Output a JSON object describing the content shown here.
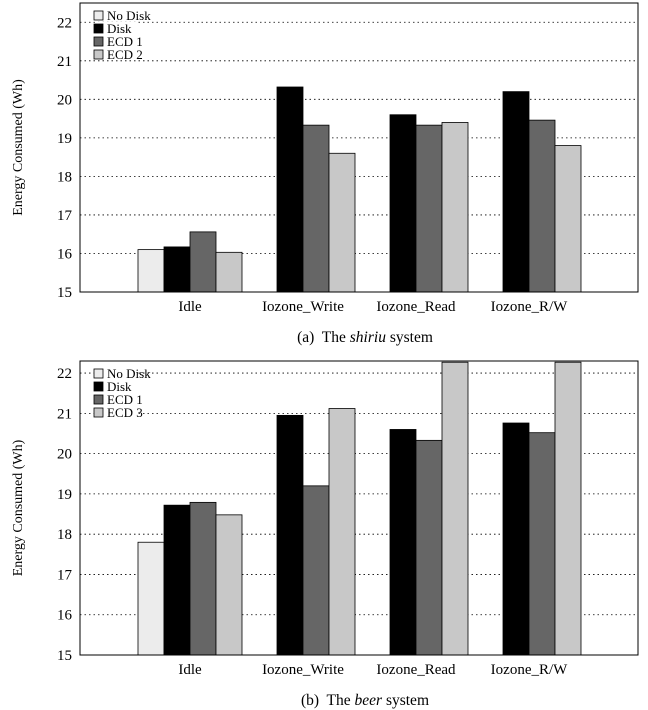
{
  "chart_data": [
    {
      "type": "bar",
      "ylabel": "Energy Consumed (Wh)",
      "ylim": [
        15,
        22.5
      ],
      "yticks": [
        15,
        16,
        17,
        18,
        19,
        20,
        21,
        22
      ],
      "grid": true,
      "legend_position": "top-left",
      "categories": [
        "Idle",
        "Iozone_Write",
        "Iozone_Read",
        "Iozone_R/W"
      ],
      "caption": {
        "prefix": "(a)  The ",
        "emph": "shiriu",
        "suffix": " system"
      },
      "series": [
        {
          "name": "No Disk",
          "color": "#ececec",
          "values": [
            16.1,
            null,
            null,
            null
          ]
        },
        {
          "name": "Disk",
          "color": "#000000",
          "values": [
            16.17,
            20.32,
            19.6,
            20.2
          ]
        },
        {
          "name": "ECD 1",
          "color": "#666666",
          "values": [
            16.56,
            19.33,
            19.33,
            19.46
          ]
        },
        {
          "name": "ECD 2",
          "color": "#c8c8c8",
          "values": [
            16.03,
            18.6,
            19.4,
            18.8
          ]
        }
      ]
    },
    {
      "type": "bar",
      "ylabel": "Energy Consumed (Wh)",
      "ylim": [
        15,
        22.3
      ],
      "yticks": [
        15,
        16,
        17,
        18,
        19,
        20,
        21,
        22
      ],
      "grid": true,
      "legend_position": "top-left",
      "categories": [
        "Idle",
        "Iozone_Write",
        "Iozone_Read",
        "Iozone_R/W"
      ],
      "caption": {
        "prefix": "(b)  The ",
        "emph": "beer",
        "suffix": " system"
      },
      "series": [
        {
          "name": "No Disk",
          "color": "#ececec",
          "values": [
            17.8,
            null,
            null,
            null
          ]
        },
        {
          "name": "Disk",
          "color": "#000000",
          "values": [
            18.72,
            20.95,
            20.6,
            20.76
          ]
        },
        {
          "name": "ECD 1",
          "color": "#666666",
          "values": [
            18.79,
            19.2,
            20.33,
            20.52
          ]
        },
        {
          "name": "ECD 3",
          "color": "#c8c8c8",
          "values": [
            18.48,
            21.12,
            22.27,
            22.27
          ]
        }
      ]
    }
  ]
}
